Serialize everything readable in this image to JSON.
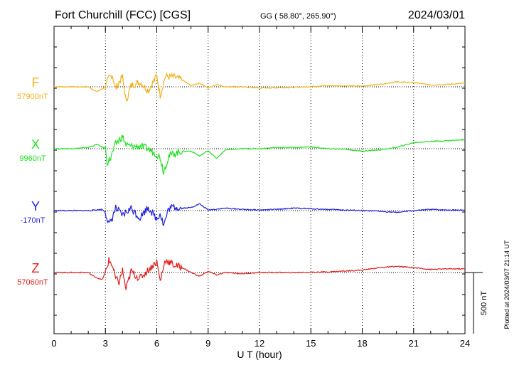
{
  "header": {
    "station": "Fort Churchill (FCC)  [CGS]",
    "coords": "GG ( 58.80°, 265.90°)",
    "date": "2024/03/01"
  },
  "footer_note": "Plotted at 2024/03/07 21:14 UT",
  "scale_bar_label": "500 nT",
  "chart_data": {
    "type": "line",
    "xlabel": "U T (hour)",
    "xlim": [
      0,
      24
    ],
    "xticks": [
      0,
      3,
      6,
      9,
      12,
      15,
      18,
      21,
      24
    ],
    "nT_per_row": 500,
    "grid": "dotted vertical every 3 hours",
    "series": [
      {
        "name": "F",
        "baseline_label": "57900nT",
        "baseline": 57900,
        "color": "#F2B21E",
        "x": [
          0,
          1,
          2,
          2.5,
          3,
          3.2,
          3.4,
          3.6,
          3.8,
          4,
          4.2,
          4.5,
          5,
          5.5,
          6,
          6.2,
          6.5,
          7,
          7.5,
          8,
          8.5,
          9,
          9.5,
          10,
          11,
          12,
          14,
          16,
          18,
          19,
          20,
          21,
          22,
          23,
          24
        ],
        "y": [
          0,
          0,
          0,
          -40,
          0,
          70,
          100,
          -20,
          40,
          80,
          -120,
          10,
          40,
          -30,
          90,
          -70,
          85,
          80,
          55,
          10,
          30,
          -10,
          20,
          0,
          0,
          -10,
          -5,
          10,
          5,
          20,
          40,
          35,
          15,
          20,
          30
        ]
      },
      {
        "name": "X",
        "baseline_label": "9960nT",
        "baseline": 9960,
        "color": "#22E022",
        "x": [
          0,
          1,
          2,
          2.5,
          3,
          3.1,
          3.3,
          3.6,
          4,
          4.2,
          4.5,
          5,
          5.5,
          5.8,
          6,
          6.2,
          6.4,
          6.7,
          7,
          7.5,
          8,
          8.5,
          9,
          9.5,
          10,
          11,
          12,
          13,
          14,
          15,
          16,
          17,
          18,
          19,
          20,
          21,
          22,
          23,
          24
        ],
        "y": [
          0,
          0,
          10,
          35,
          0,
          -110,
          -80,
          40,
          100,
          30,
          20,
          20,
          0,
          -30,
          -45,
          -70,
          -190,
          -60,
          -40,
          -20,
          -20,
          -60,
          -15,
          -80,
          -10,
          0,
          0,
          10,
          10,
          15,
          0,
          -5,
          -20,
          -10,
          10,
          50,
          60,
          65,
          75
        ]
      },
      {
        "name": "Y",
        "baseline_label": "-170nT",
        "baseline": -170,
        "color": "#1E1EDC",
        "x": [
          0,
          1,
          2,
          2.8,
          3,
          3.2,
          3.4,
          3.6,
          4,
          4.5,
          5,
          5.5,
          6,
          6.2,
          6.4,
          6.7,
          7,
          7.5,
          8,
          8.5,
          9,
          10,
          11,
          12,
          13,
          14,
          15,
          16,
          17,
          18,
          19,
          20,
          21,
          22,
          23,
          24
        ],
        "y": [
          0,
          0,
          0,
          10,
          -10,
          -120,
          -60,
          20,
          -40,
          20,
          -60,
          30,
          -70,
          -20,
          -120,
          15,
          30,
          20,
          25,
          55,
          5,
          20,
          10,
          5,
          10,
          20,
          15,
          10,
          5,
          0,
          -5,
          -15,
          0,
          10,
          5,
          5
        ]
      },
      {
        "name": "Z",
        "baseline_label": "57060nT",
        "baseline": 57060,
        "color": "#E01E1E",
        "x": [
          0,
          1,
          2,
          2.3,
          2.8,
          3,
          3.2,
          3.4,
          3.6,
          3.8,
          4,
          4.2,
          4.5,
          5,
          5.5,
          6,
          6.2,
          6.5,
          7,
          7.5,
          8,
          8.5,
          9,
          9.5,
          10,
          11,
          12,
          14,
          16,
          18,
          19,
          20,
          21,
          22,
          23,
          24
        ],
        "y": [
          0,
          0,
          0,
          -30,
          -60,
          0,
          100,
          60,
          -50,
          -80,
          20,
          -140,
          10,
          -50,
          20,
          90,
          -70,
          105,
          60,
          40,
          0,
          -30,
          10,
          -20,
          0,
          -10,
          0,
          0,
          5,
          20,
          40,
          50,
          40,
          25,
          30,
          30
        ]
      }
    ]
  }
}
